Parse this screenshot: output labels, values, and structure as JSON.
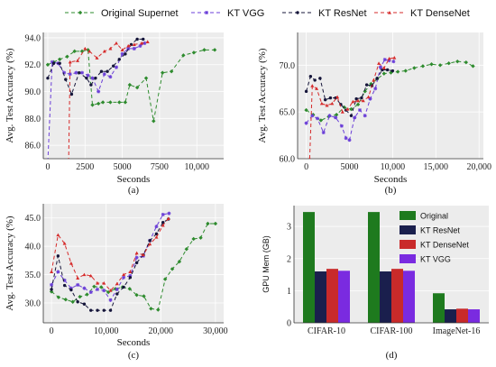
{
  "legend": {
    "entries": [
      {
        "name": "Original Supernet",
        "color": "#2e8b2e",
        "dash": "4,3",
        "marker": "diamond"
      },
      {
        "name": "KT VGG",
        "color": "#6b3fd8",
        "dash": "4,3",
        "marker": "star"
      },
      {
        "name": "KT ResNet",
        "color": "#15153a",
        "dash": "4,3",
        "marker": "circle"
      },
      {
        "name": "KT DenseNet",
        "color": "#d62b2b",
        "dash": "4,3",
        "marker": "tri"
      }
    ]
  },
  "chart_data": [
    {
      "id": "a",
      "type": "line",
      "caption": "(a)",
      "xlabel": "Seconds",
      "ylabel": "Avg. Test Accuracy (%)",
      "xlim": [
        -300,
        11800
      ],
      "ylim": [
        85,
        94.4
      ],
      "xticks": [
        0,
        2500,
        5000,
        7500,
        10000
      ],
      "yticks": [
        86.0,
        88.0,
        90.0,
        92.0,
        94.0
      ],
      "grid": true,
      "series": [
        {
          "name": "Original Supernet",
          "x": [
            0,
            400,
            800,
            1300,
            1800,
            2300,
            2700,
            3000,
            3400,
            3700,
            4200,
            4800,
            5200,
            5500,
            6000,
            6600,
            7100,
            7700,
            8300,
            9100,
            9800,
            10500,
            11200
          ],
          "y": [
            92.0,
            92.2,
            92.4,
            92.6,
            93.0,
            93.0,
            93.1,
            89.0,
            89.1,
            89.2,
            89.2,
            89.2,
            89.2,
            90.5,
            90.3,
            91.0,
            87.8,
            91.4,
            91.5,
            92.7,
            92.9,
            93.1,
            93.1
          ]
        },
        {
          "name": "KT VGG",
          "x": [
            0,
            300,
            700,
            1100,
            1500,
            1900,
            2300,
            2700,
            3000,
            3400,
            3800,
            4200,
            4600,
            5000,
            5400,
            5800,
            6200,
            6500
          ],
          "y": [
            84.8,
            92.2,
            92.1,
            91.4,
            91.3,
            91.4,
            91.4,
            91.2,
            91.0,
            90.0,
            91.3,
            91.1,
            91.8,
            92.8,
            93.2,
            93.2,
            93.4,
            93.6
          ]
        },
        {
          "name": "KT ResNet",
          "x": [
            0,
            400,
            800,
            1200,
            1600,
            2100,
            2600,
            2900,
            3200,
            3600,
            4000,
            4400,
            4800,
            5200,
            5600,
            6000,
            6400
          ],
          "y": [
            91.0,
            92.1,
            92.1,
            90.9,
            89.8,
            91.4,
            91.0,
            90.5,
            91.0,
            91.5,
            91.5,
            91.9,
            92.4,
            92.8,
            93.5,
            93.9,
            93.9
          ]
        },
        {
          "name": "KT DenseNet",
          "x": [
            1400,
            1500,
            2000,
            2500,
            2800,
            3300,
            3800,
            4200,
            4600,
            5000,
            5400,
            5800,
            6300,
            6700
          ],
          "y": [
            84.8,
            92.2,
            92.3,
            93.2,
            93.0,
            92.5,
            93.0,
            93.2,
            93.6,
            93.1,
            93.4,
            93.5,
            93.6,
            93.7
          ]
        }
      ]
    },
    {
      "id": "b",
      "type": "line",
      "caption": "(b)",
      "xlabel": "Seconds",
      "ylabel": "Avg. Test Accuracy (%)",
      "xlim": [
        -1000,
        20500
      ],
      "ylim": [
        60,
        73.5
      ],
      "xticks": [
        0,
        5000,
        10000,
        15000,
        20000
      ],
      "yticks": [
        60.0,
        65.0,
        70.0
      ],
      "grid": true,
      "series": [
        {
          "name": "Original Supernet",
          "x": [
            0,
            800,
            1700,
            2600,
            3500,
            4400,
            5200,
            6000,
            6800,
            7500,
            8200,
            9000,
            9800,
            10600,
            11500,
            12500,
            13500,
            14500,
            15500,
            16500,
            17500,
            18500,
            19300
          ],
          "y": [
            65.2,
            64.7,
            64.1,
            64.5,
            64.7,
            65.5,
            65.3,
            65.8,
            67.2,
            68.0,
            68.5,
            69.1,
            69.2,
            69.3,
            69.4,
            69.7,
            69.9,
            70.1,
            70.0,
            70.2,
            70.4,
            70.3,
            69.9
          ]
        },
        {
          "name": "KT VGG",
          "x": [
            0,
            700,
            1300,
            2000,
            2700,
            3400,
            4100,
            4600,
            5000,
            5600,
            6200,
            6800,
            7400,
            8000,
            8600,
            9100,
            9600,
            10100
          ],
          "y": [
            63.8,
            64.6,
            64.3,
            62.8,
            64.6,
            64.4,
            63.5,
            62.2,
            62.0,
            64.4,
            65.2,
            64.6,
            66.4,
            67.5,
            69.8,
            70.6,
            70.5,
            70.4
          ]
        },
        {
          "name": "KT ResNet",
          "x": [
            0,
            500,
            1000,
            1600,
            2200,
            2800,
            3400,
            4000,
            4600,
            5200,
            5800,
            6400,
            7000,
            7600,
            8200,
            8800,
            9400,
            10000
          ],
          "y": [
            67.2,
            68.8,
            68.4,
            68.6,
            66.3,
            66.5,
            66.5,
            65.8,
            65.2,
            64.6,
            66.4,
            66.5,
            67.9,
            67.8,
            68.6,
            69.5,
            69.5,
            69.4
          ]
        },
        {
          "name": "KT DenseNet",
          "x": [
            400,
            700,
            1200,
            1800,
            2400,
            3000,
            3600,
            4200,
            4800,
            5400,
            6000,
            6600,
            7200,
            7800,
            8400,
            9000,
            9600,
            10200
          ],
          "y": [
            60.0,
            67.8,
            67.5,
            65.9,
            65.7,
            65.9,
            66.6,
            65.0,
            65.3,
            66.1,
            66.2,
            66.2,
            66.6,
            68.4,
            70.2,
            69.7,
            70.7,
            70.8
          ]
        }
      ]
    },
    {
      "id": "c",
      "type": "line",
      "caption": "(c)",
      "xlabel": "Seconds",
      "ylabel": "Avg. Test Accuracy (%)",
      "xlim": [
        -1500,
        31500
      ],
      "ylim": [
        26.5,
        47.5
      ],
      "xticks": [
        0,
        10000,
        20000,
        30000
      ],
      "yticks": [
        30.0,
        35.0,
        40.0,
        45.0
      ],
      "grid": true,
      "series": [
        {
          "name": "Original Supernet",
          "x": [
            0,
            1300,
            2600,
            3900,
            5200,
            6500,
            7800,
            9100,
            10400,
            11700,
            13000,
            14300,
            15600,
            16900,
            18200,
            19500,
            20800,
            22100,
            23400,
            24700,
            26000,
            27300,
            28600,
            30000
          ],
          "y": [
            32.0,
            31.0,
            30.6,
            30.2,
            31.1,
            31.5,
            32.9,
            32.8,
            31.9,
            32.5,
            32.8,
            32.5,
            31.4,
            31.2,
            29.0,
            28.8,
            34.2,
            36.0,
            37.3,
            39.5,
            41.3,
            41.5,
            44.0,
            44.0
          ]
        },
        {
          "name": "KT VGG",
          "x": [
            0,
            1200,
            2400,
            3600,
            4800,
            6000,
            7200,
            8400,
            9600,
            10800,
            12000,
            13200,
            14400,
            15600,
            16800,
            18000,
            19200,
            20400,
            21500
          ],
          "y": [
            33.2,
            35.5,
            34.0,
            32.6,
            33.2,
            32.6,
            31.9,
            32.4,
            32.2,
            30.5,
            32.4,
            34.5,
            34.8,
            38.0,
            38.3,
            41.0,
            43.5,
            45.6,
            45.8
          ]
        },
        {
          "name": "KT ResNet",
          "x": [
            0,
            1200,
            2400,
            3600,
            4800,
            6000,
            7200,
            8400,
            9600,
            10800,
            12000,
            13200,
            14400,
            15600,
            16800,
            18000,
            19200,
            20400,
            21400
          ],
          "y": [
            32.4,
            38.3,
            33.1,
            32.3,
            30.2,
            29.8,
            28.7,
            28.7,
            28.7,
            28.7,
            31.6,
            32.8,
            34.5,
            37.1,
            38.5,
            41.0,
            42.2,
            44.2,
            44.8
          ]
        },
        {
          "name": "KT DenseNet",
          "x": [
            0,
            1200,
            2400,
            3600,
            4800,
            6000,
            7200,
            8400,
            9600,
            10800,
            12000,
            13200,
            14400,
            15600,
            16800,
            18000,
            19200,
            20400,
            21400
          ],
          "y": [
            35.5,
            42.0,
            40.5,
            37.0,
            34.4,
            35.0,
            34.8,
            33.5,
            33.5,
            32.2,
            33.4,
            35.0,
            35.5,
            38.8,
            38.5,
            40.4,
            41.6,
            43.7,
            44.9
          ]
        }
      ]
    },
    {
      "id": "d",
      "type": "bar",
      "caption": "(d)",
      "xlabel": "",
      "ylabel": "GPU Mem (GB)",
      "ylim": [
        0,
        3.65
      ],
      "yticks": [
        0,
        1,
        2,
        3
      ],
      "grid": true,
      "legend_position": "top-right",
      "categories": [
        "CIFAR-10",
        "CIFAR-100",
        "ImageNet-16"
      ],
      "series": [
        {
          "name": "Original",
          "color": "#1e7a1e",
          "values": [
            3.45,
            3.45,
            0.92
          ]
        },
        {
          "name": "KT ResNet",
          "color": "#1a1f4d",
          "values": [
            1.6,
            1.6,
            0.42
          ]
        },
        {
          "name": "KT DenseNet",
          "color": "#c92a2a",
          "values": [
            1.68,
            1.68,
            0.44
          ]
        },
        {
          "name": "KT VGG",
          "color": "#7a2be0",
          "values": [
            1.62,
            1.62,
            0.42
          ]
        }
      ]
    }
  ]
}
